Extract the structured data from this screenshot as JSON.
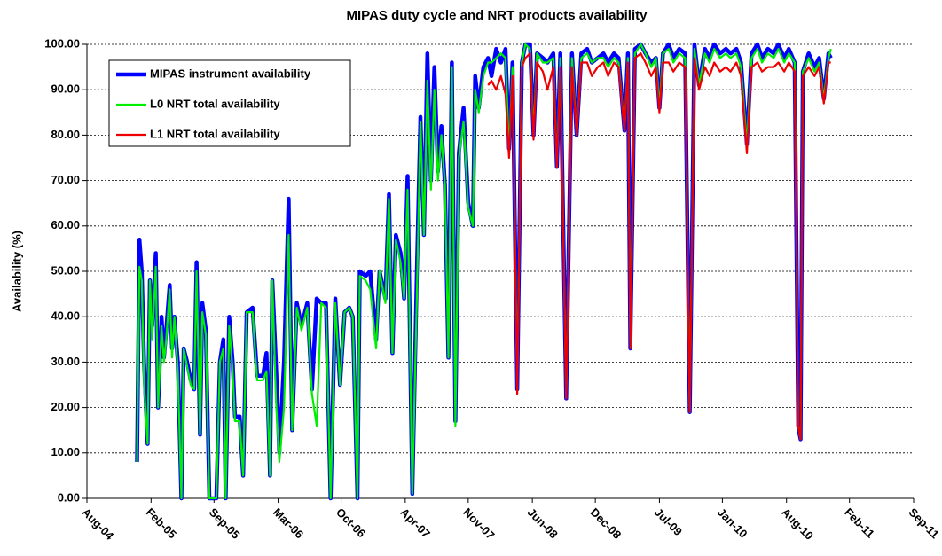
{
  "chart_data": {
    "type": "line",
    "title": "MIPAS duty cycle and NRT products availability",
    "y_label": "Availability (%)",
    "legend": "upper left",
    "grid": true,
    "x": [
      2005.01,
      2005.03,
      2005.05,
      2005.07,
      2005.1,
      2005.12,
      2005.14,
      2005.17,
      2005.19,
      2005.22,
      2005.24,
      2005.26,
      2005.29,
      2005.31,
      2005.33,
      2005.36,
      2005.39,
      2005.41,
      2005.44,
      2005.47,
      2005.5,
      2005.52,
      2005.55,
      2005.57,
      2005.6,
      2005.63,
      2005.66,
      2005.69,
      2005.72,
      2005.75,
      2005.77,
      2005.8,
      2005.83,
      2005.85,
      2005.89,
      2005.92,
      2005.95,
      2006.0,
      2006.04,
      2006.09,
      2006.12,
      2006.15,
      2006.17,
      2006.2,
      2006.23,
      2006.27,
      2006.31,
      2006.34,
      2006.38,
      2006.42,
      2006.47,
      2006.51,
      2006.55,
      2006.59,
      2006.63,
      2006.67,
      2006.71,
      2006.75,
      2006.79,
      2006.83,
      2006.86,
      2006.9,
      2006.92,
      2006.97,
      2007.01,
      2007.06,
      2007.09,
      2007.14,
      2007.17,
      2007.2,
      2007.23,
      2007.27,
      2007.3,
      2007.33,
      2007.37,
      2007.41,
      2007.44,
      2007.47,
      2007.5,
      2007.53,
      2007.56,
      2007.59,
      2007.62,
      2007.65,
      2007.68,
      2007.71,
      2007.74,
      2007.77,
      2007.81,
      2007.85,
      2007.89,
      2007.91,
      2007.94,
      2007.98,
      2008.02,
      2008.05,
      2008.09,
      2008.13,
      2008.17,
      2008.2,
      2008.23,
      2008.27,
      2008.31,
      2008.34,
      2008.38,
      2008.41,
      2008.44,
      2008.49,
      2008.53,
      2008.58,
      2008.61,
      2008.64,
      2008.69,
      2008.74,
      2008.78,
      2008.82,
      2008.87,
      2008.91,
      2008.96,
      2009.01,
      2009.05,
      2009.1,
      2009.14,
      2009.19,
      2009.22,
      2009.24,
      2009.28,
      2009.33,
      2009.37,
      2009.42,
      2009.46,
      2009.49,
      2009.52,
      2009.57,
      2009.61,
      2009.66,
      2009.71,
      2009.75,
      2009.79,
      2009.83,
      2009.88,
      2009.92,
      2009.96,
      2010.01,
      2010.06,
      2010.1,
      2010.15,
      2010.19,
      2010.24,
      2010.28,
      2010.33,
      2010.37,
      2010.42,
      2010.47,
      2010.51,
      2010.56,
      2010.6,
      2010.65,
      2010.68,
      2010.7,
      2010.72,
      2010.77,
      2010.82,
      2010.86,
      2010.9,
      2010.94,
      2010.96
    ],
    "series": [
      {
        "name": "MIPAS instrument  availability",
        "color": "#0000ff",
        "values": [
          8,
          57,
          50,
          30,
          12,
          48,
          38,
          54,
          20,
          40,
          31,
          37,
          47,
          33,
          40,
          30,
          0,
          33,
          30,
          26,
          24,
          52,
          14,
          43,
          37,
          0,
          0,
          0,
          30,
          35,
          0,
          40,
          30,
          18,
          18,
          5,
          41,
          42,
          27,
          27,
          32,
          5,
          48,
          30,
          10,
          30,
          66,
          15,
          43,
          38,
          43,
          24,
          44,
          43,
          43,
          0,
          44,
          25,
          41,
          42,
          40,
          0,
          50,
          49,
          50,
          35,
          50,
          44,
          67,
          32,
          58,
          54,
          44,
          71,
          1,
          50,
          84,
          58,
          98,
          70,
          95,
          72,
          82,
          69,
          31,
          96,
          17,
          76,
          86,
          65,
          60,
          93,
          86,
          95,
          97,
          93,
          99,
          96,
          99,
          77,
          96,
          24,
          96,
          100,
          100,
          80,
          98,
          97,
          96,
          98,
          73,
          98,
          22,
          98,
          80,
          98,
          99,
          96,
          97,
          98,
          96,
          98,
          97,
          81,
          98,
          33,
          99,
          100,
          98,
          96,
          97,
          86,
          98,
          100,
          97,
          99,
          98,
          19,
          100,
          91,
          99,
          97,
          100,
          98,
          99,
          98,
          99,
          96,
          78,
          98,
          100,
          97,
          99,
          98,
          100,
          97,
          99,
          96,
          16,
          13,
          94,
          98,
          95,
          97,
          88,
          98,
          97
        ]
      },
      {
        "name": "L0 NRT  total availability",
        "color": "#00ee00",
        "values": [
          8,
          51,
          48,
          25,
          12,
          48,
          35,
          51,
          20,
          38,
          30,
          35,
          46,
          31,
          40,
          28,
          0,
          33,
          29,
          25,
          24,
          50,
          14,
          41,
          36,
          0,
          0,
          0,
          30,
          33,
          0,
          38,
          28,
          17,
          17,
          5,
          41,
          41,
          26,
          26,
          28,
          5,
          48,
          22,
          8,
          20,
          58,
          15,
          42,
          37,
          42,
          23,
          16,
          43,
          42,
          0,
          43,
          25,
          41,
          42,
          40,
          0,
          49,
          48,
          46,
          33,
          50,
          43,
          66,
          32,
          57,
          52,
          44,
          68,
          1,
          45,
          83,
          58,
          92,
          68,
          90,
          70,
          80,
          69,
          31,
          95,
          16,
          75,
          83,
          64,
          60,
          90,
          85,
          93,
          96,
          96,
          97,
          98,
          97,
          76,
          95,
          24,
          96,
          100,
          99,
          80,
          98,
          96,
          96,
          97,
          73,
          97,
          22,
          97,
          80,
          97,
          98,
          96,
          97,
          97,
          95,
          97,
          96,
          81,
          97,
          33,
          98,
          100,
          98,
          95,
          97,
          86,
          98,
          99,
          96,
          98,
          97,
          19,
          99,
          91,
          98,
          96,
          99,
          97,
          98,
          97,
          98,
          95,
          78,
          97,
          99,
          96,
          98,
          97,
          99,
          96,
          98,
          96,
          16,
          13,
          94,
          97,
          94,
          96,
          88,
          97,
          99
        ]
      },
      {
        "name": "L1 NRT  total availability",
        "color": "#ee0000",
        "values": [
          null,
          null,
          null,
          null,
          null,
          null,
          null,
          null,
          null,
          null,
          null,
          null,
          null,
          null,
          null,
          null,
          null,
          null,
          null,
          null,
          null,
          null,
          null,
          null,
          null,
          null,
          null,
          null,
          null,
          null,
          null,
          null,
          null,
          null,
          null,
          null,
          null,
          null,
          null,
          null,
          null,
          null,
          null,
          null,
          null,
          null,
          null,
          null,
          null,
          null,
          null,
          null,
          null,
          null,
          null,
          null,
          null,
          null,
          null,
          null,
          null,
          null,
          null,
          null,
          null,
          null,
          null,
          null,
          null,
          null,
          null,
          null,
          null,
          null,
          null,
          null,
          null,
          null,
          null,
          null,
          null,
          null,
          null,
          null,
          null,
          null,
          null,
          null,
          null,
          null,
          null,
          null,
          null,
          null,
          91,
          92,
          90,
          93,
          89,
          75,
          93,
          23,
          95,
          97,
          98,
          79,
          96,
          94,
          90,
          95,
          73,
          95,
          22,
          95,
          80,
          96,
          96,
          93,
          95,
          96,
          93,
          96,
          95,
          81,
          96,
          33,
          97,
          98,
          96,
          93,
          95,
          85,
          96,
          96,
          94,
          96,
          95,
          19,
          97,
          90,
          95,
          93,
          96,
          94,
          95,
          94,
          96,
          93,
          76,
          95,
          96,
          94,
          95,
          95,
          96,
          94,
          96,
          94,
          16,
          13,
          93,
          95,
          93,
          95,
          87,
          96,
          96
        ]
      }
    ],
    "xlim": [
      2004.58,
      2011.67
    ],
    "xticks": [
      {
        "value": 2004.58,
        "label": "Aug-04"
      },
      {
        "value": 2005.13,
        "label": "Feb-05"
      },
      {
        "value": 2005.67,
        "label": "Sep-05"
      },
      {
        "value": 2006.22,
        "label": "Mar-06"
      },
      {
        "value": 2006.76,
        "label": "Oct-06"
      },
      {
        "value": 2007.31,
        "label": "Apr-07"
      },
      {
        "value": 2007.85,
        "label": "Nov-07"
      },
      {
        "value": 2008.4,
        "label": "Jun-08"
      },
      {
        "value": 2008.94,
        "label": "Dec-08"
      },
      {
        "value": 2009.49,
        "label": "Jul-09"
      },
      {
        "value": 2010.03,
        "label": "Jan-10"
      },
      {
        "value": 2010.58,
        "label": "Aug-10"
      },
      {
        "value": 2011.12,
        "label": "Feb-11"
      },
      {
        "value": 2011.67,
        "label": "Sep-11"
      }
    ],
    "ylim": [
      0,
      100
    ],
    "yticks": [
      {
        "value": 0,
        "label": "0.00"
      },
      {
        "value": 10,
        "label": "10.00"
      },
      {
        "value": 20,
        "label": "20.00"
      },
      {
        "value": 30,
        "label": "30.00"
      },
      {
        "value": 40,
        "label": "40.00"
      },
      {
        "value": 50,
        "label": "50.00"
      },
      {
        "value": 60,
        "label": "60.00"
      },
      {
        "value": 70,
        "label": "70.00"
      },
      {
        "value": 80,
        "label": "80.00"
      },
      {
        "value": 90,
        "label": "90.00"
      },
      {
        "value": 100,
        "label": "100.00"
      }
    ]
  }
}
